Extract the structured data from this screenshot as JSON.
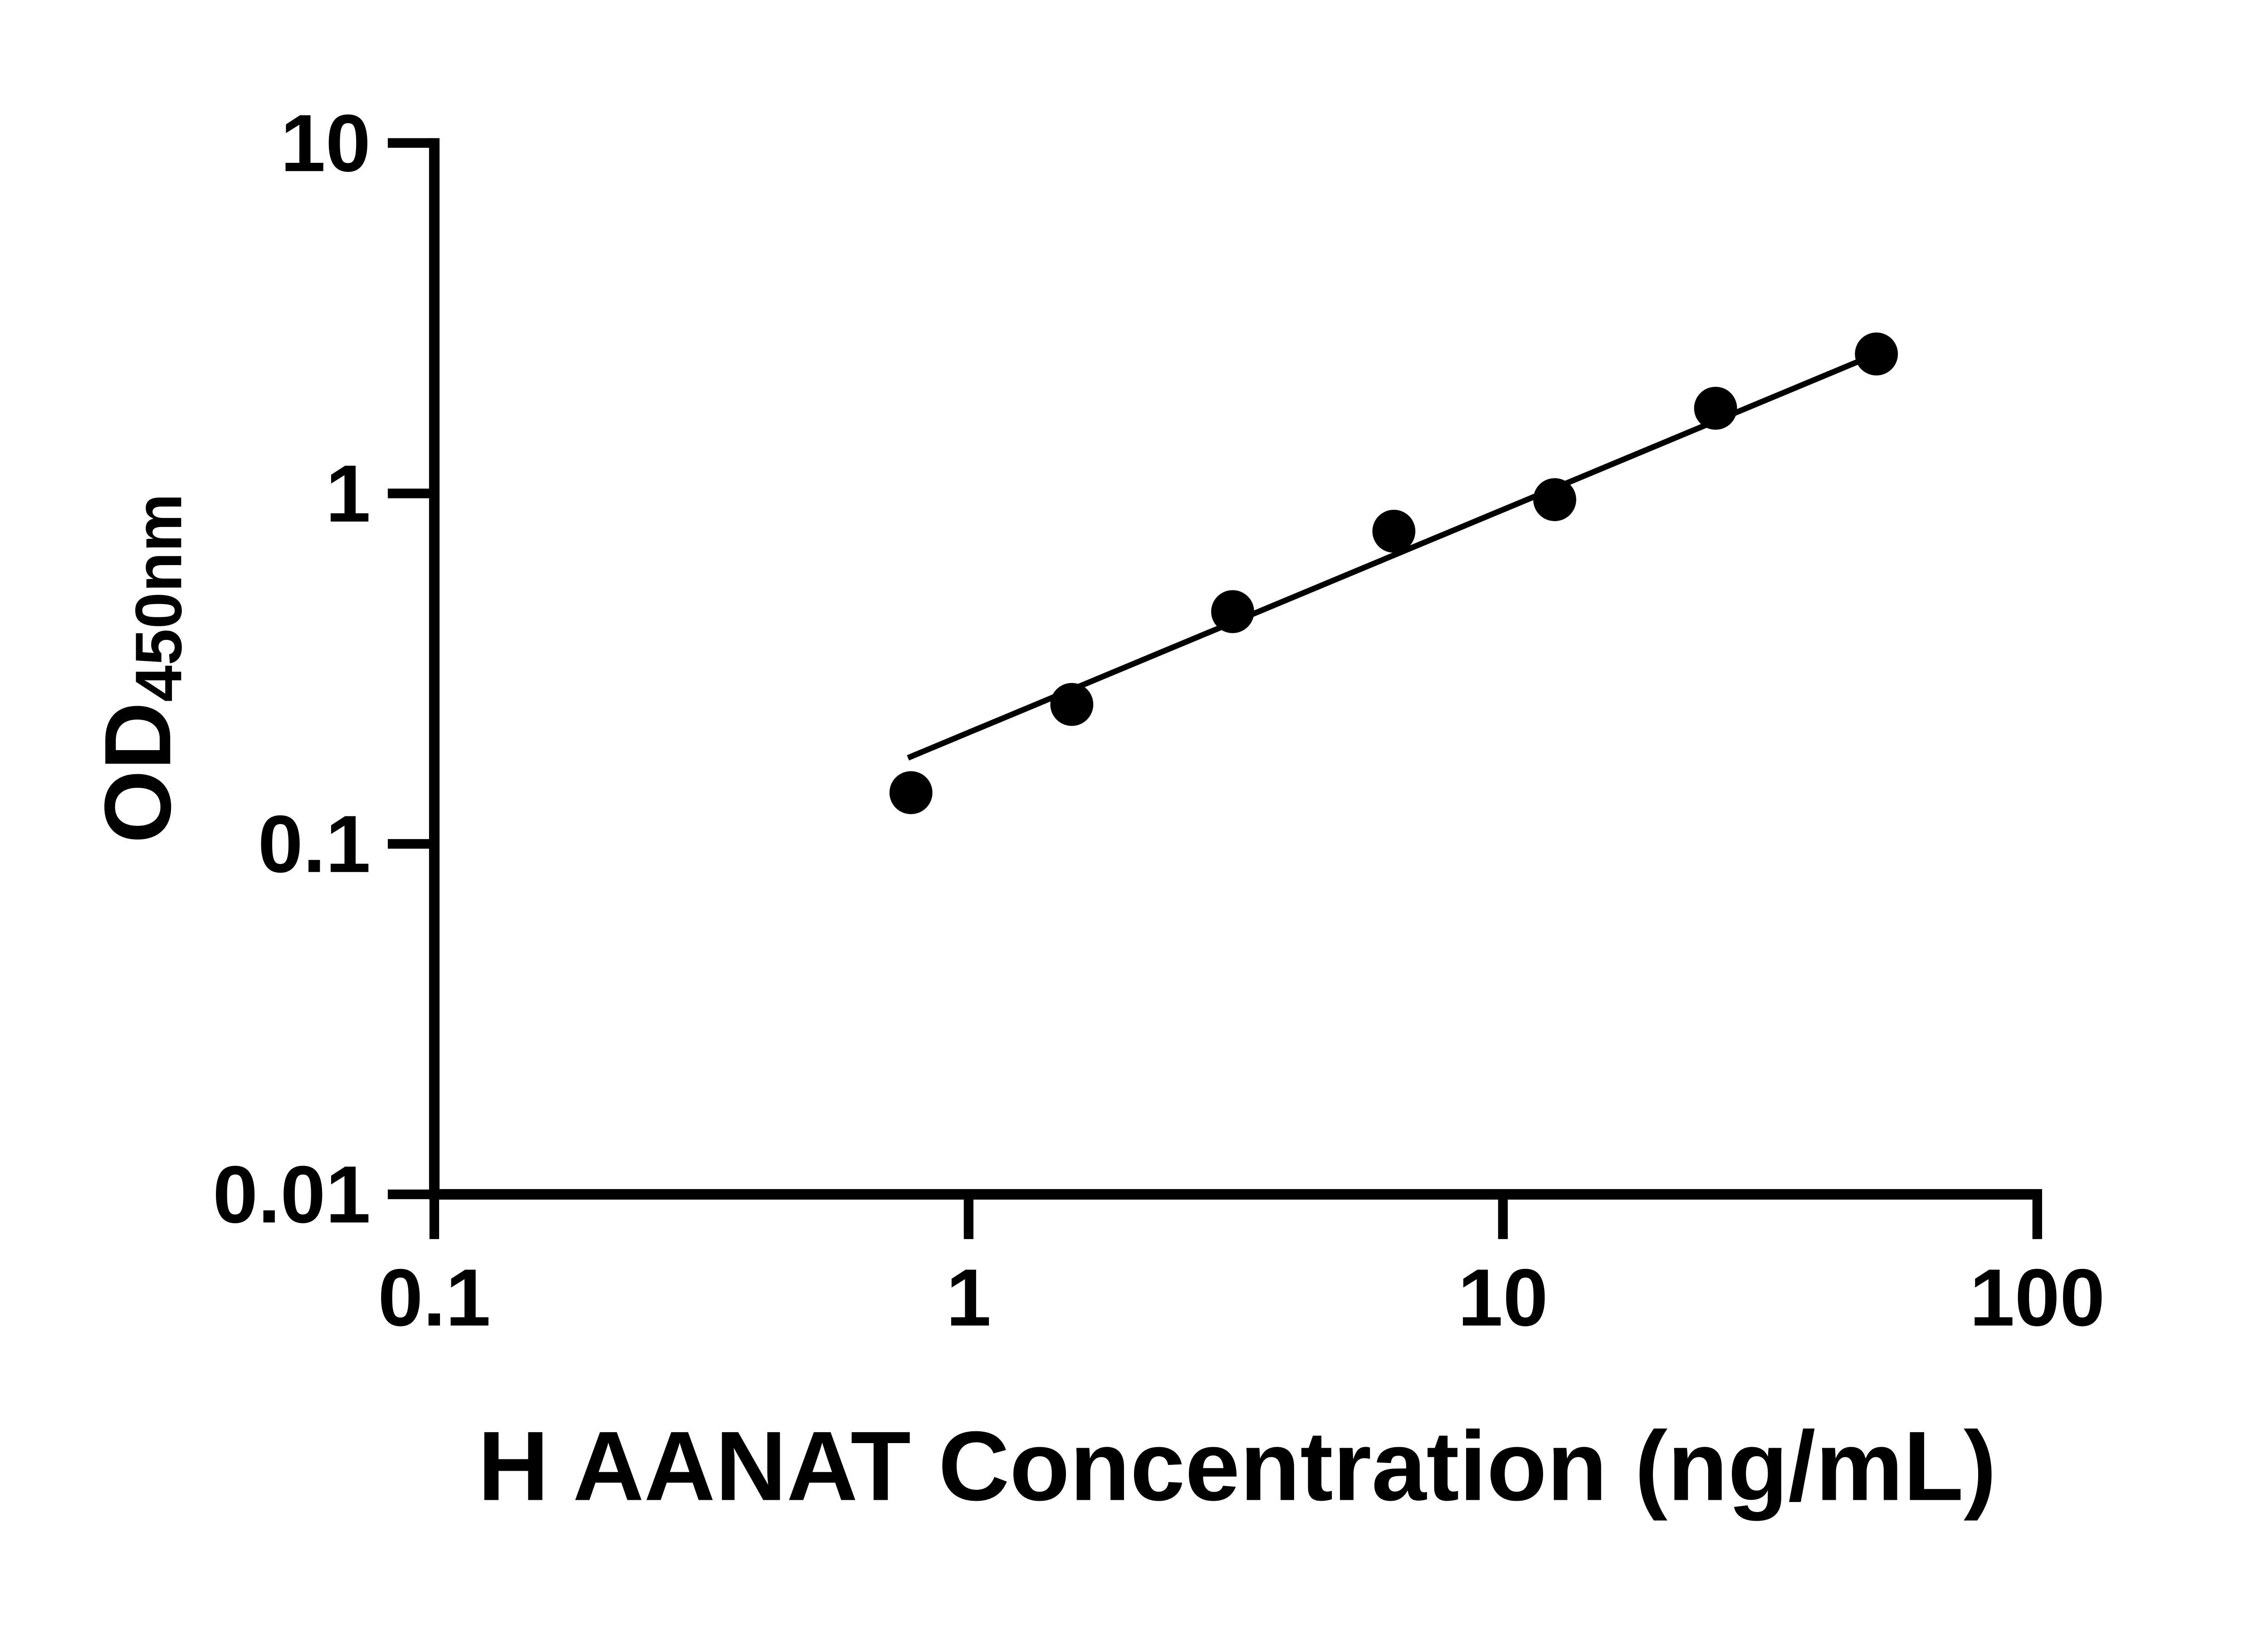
{
  "page": {
    "background_color": "#ffffff",
    "foreground_color": "#000000"
  },
  "chart_data": {
    "type": "scatter",
    "title": "",
    "xlabel": "H AANAT Concentration (ng/mL)",
    "ylabel_main": "OD",
    "ylabel_sub": "450nm",
    "x_scale": "log10",
    "y_scale": "log10",
    "xlim": [
      0.1,
      100
    ],
    "ylim": [
      0.01,
      10
    ],
    "x_ticks": [
      0.1,
      1,
      10,
      100
    ],
    "x_tick_labels": [
      "0.1",
      "1",
      "10",
      "100"
    ],
    "y_ticks": [
      10,
      1,
      0.1,
      0.01
    ],
    "y_tick_labels": [
      "10",
      "1",
      "0.1",
      "0.01"
    ],
    "grid": false,
    "legend": null,
    "series": [
      {
        "name": "standard-curve-points",
        "type": "scatter",
        "marker": "filled-circle",
        "color": "#000000",
        "points": [
          {
            "x": 0.78,
            "y": 0.14
          },
          {
            "x": 1.56,
            "y": 0.25
          },
          {
            "x": 3.12,
            "y": 0.46
          },
          {
            "x": 6.25,
            "y": 0.78
          },
          {
            "x": 12.5,
            "y": 0.96
          },
          {
            "x": 25,
            "y": 1.75
          },
          {
            "x": 50,
            "y": 2.5
          }
        ]
      },
      {
        "name": "fit-line",
        "type": "line",
        "color": "#000000",
        "points": [
          {
            "x": 0.77,
            "y": 0.176
          },
          {
            "x": 50,
            "y": 2.5
          }
        ]
      }
    ]
  }
}
